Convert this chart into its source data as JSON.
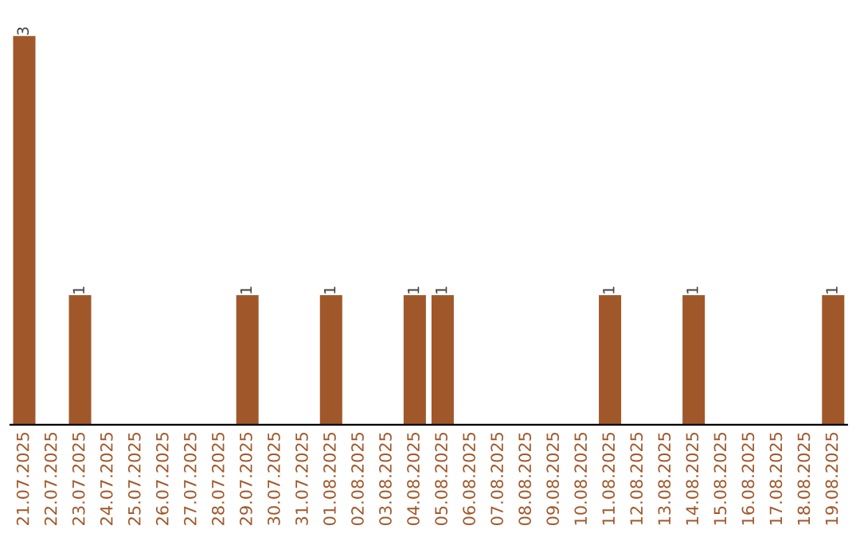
{
  "chart_data": {
    "type": "bar",
    "categories": [
      "21.07.2025",
      "22.07.2025",
      "23.07.2025",
      "24.07.2025",
      "25.07.2025",
      "26.07.2025",
      "27.07.2025",
      "28.07.2025",
      "29.07.2025",
      "30.07.2025",
      "31.07.2025",
      "01.08.2025",
      "02.08.2025",
      "03.08.2025",
      "04.08.2025",
      "05.08.2025",
      "06.08.2025",
      "07.08.2025",
      "08.08.2025",
      "09.08.2025",
      "10.08.2025",
      "11.08.2025",
      "12.08.2025",
      "13.08.2025",
      "14.08.2025",
      "15.08.2025",
      "16.08.2025",
      "17.08.2025",
      "18.08.2025",
      "19.08.2025"
    ],
    "values": [
      3,
      0,
      1,
      0,
      0,
      0,
      0,
      0,
      1,
      0,
      0,
      1,
      0,
      0,
      1,
      1,
      0,
      0,
      0,
      0,
      0,
      1,
      0,
      0,
      1,
      0,
      0,
      0,
      0,
      1
    ],
    "value_labels": [
      "3",
      null,
      "1",
      null,
      null,
      null,
      null,
      null,
      "1",
      null,
      null,
      "1",
      null,
      null,
      "1",
      "1",
      null,
      null,
      null,
      null,
      null,
      "1",
      null,
      null,
      "1",
      null,
      null,
      null,
      null,
      "1"
    ],
    "color": "#a0582b",
    "grid": false,
    "legend": false,
    "tick_labels": "x"
  }
}
